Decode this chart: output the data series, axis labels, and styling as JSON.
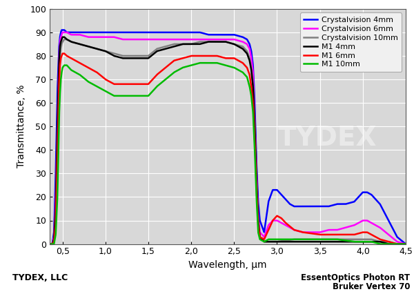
{
  "xlabel": "Wavelength, μm",
  "ylabel": "Transmittance, %",
  "xlim": [
    0.35,
    4.5
  ],
  "ylim": [
    0,
    100
  ],
  "xticks": [
    0.5,
    1.0,
    1.5,
    2.0,
    2.5,
    3.0,
    3.5,
    4.0,
    4.5
  ],
  "yticks": [
    0,
    10,
    20,
    30,
    40,
    50,
    60,
    70,
    80,
    90,
    100
  ],
  "footer_left": "TYDEX, LLC",
  "footer_right_line1": "EssentOptics Photon RT",
  "footer_right_line2": "Bruker Vertex 70",
  "background_color": "#d8d8d8",
  "legend": [
    {
      "label": "Crystalvision 4mm",
      "color": "#0000ff",
      "lw": 1.8
    },
    {
      "label": "Crystalvision 6mm",
      "color": "#ff00ff",
      "lw": 1.8
    },
    {
      "label": "Crystalvision 10mm",
      "color": "#808080",
      "lw": 1.8
    },
    {
      "label": "M1 4mm",
      "color": "#000000",
      "lw": 1.8
    },
    {
      "label": "M1 6mm",
      "color": "#ff0000",
      "lw": 1.8
    },
    {
      "label": "M1 10mm",
      "color": "#00bb00",
      "lw": 1.8
    }
  ],
  "curves": {
    "cv4": {
      "color": "#0000ff",
      "lw": 1.8,
      "x": [
        0.35,
        0.38,
        0.4,
        0.42,
        0.44,
        0.46,
        0.47,
        0.48,
        0.49,
        0.5,
        0.52,
        0.55,
        0.6,
        0.7,
        0.8,
        0.9,
        1.0,
        1.1,
        1.2,
        1.3,
        1.4,
        1.5,
        1.6,
        1.7,
        1.8,
        1.9,
        2.0,
        2.1,
        2.2,
        2.3,
        2.4,
        2.5,
        2.6,
        2.65,
        2.68,
        2.7,
        2.72,
        2.74,
        2.76,
        2.78,
        2.8,
        2.85,
        2.9,
        2.95,
        3.0,
        3.05,
        3.1,
        3.15,
        3.2,
        3.3,
        3.4,
        3.5,
        3.6,
        3.7,
        3.8,
        3.9,
        3.95,
        4.0,
        4.05,
        4.1,
        4.15,
        4.2,
        4.3,
        4.4,
        4.5
      ],
      "y": [
        0,
        0,
        5,
        30,
        65,
        84,
        88,
        90,
        91,
        91,
        91,
        90,
        90,
        90,
        90,
        90,
        90,
        90,
        90,
        90,
        90,
        90,
        90,
        90,
        90,
        90,
        90,
        90,
        89,
        89,
        89,
        89,
        88,
        87,
        85,
        82,
        76,
        60,
        35,
        18,
        10,
        5,
        18,
        23,
        23,
        21,
        19,
        17,
        16,
        16,
        16,
        16,
        16,
        17,
        17,
        18,
        20,
        22,
        22,
        21,
        19,
        17,
        10,
        3,
        0
      ]
    },
    "cv6": {
      "color": "#ff00ff",
      "lw": 1.8,
      "x": [
        0.35,
        0.38,
        0.4,
        0.42,
        0.44,
        0.46,
        0.47,
        0.48,
        0.49,
        0.5,
        0.52,
        0.55,
        0.6,
        0.7,
        0.8,
        0.9,
        1.0,
        1.1,
        1.2,
        1.3,
        1.4,
        1.5,
        1.6,
        1.7,
        1.8,
        1.9,
        2.0,
        2.1,
        2.2,
        2.3,
        2.4,
        2.5,
        2.6,
        2.65,
        2.68,
        2.7,
        2.72,
        2.74,
        2.76,
        2.78,
        2.8,
        2.85,
        2.9,
        2.95,
        3.0,
        3.05,
        3.1,
        3.15,
        3.2,
        3.3,
        3.4,
        3.5,
        3.6,
        3.7,
        3.8,
        3.9,
        4.0,
        4.05,
        4.1,
        4.15,
        4.2,
        4.3,
        4.4,
        4.5
      ],
      "y": [
        0,
        0,
        3,
        20,
        52,
        80,
        86,
        88,
        89,
        90,
        90,
        90,
        89,
        89,
        88,
        88,
        88,
        88,
        87,
        87,
        87,
        87,
        87,
        87,
        87,
        87,
        87,
        87,
        87,
        87,
        87,
        87,
        86,
        85,
        83,
        79,
        73,
        54,
        30,
        12,
        5,
        3,
        8,
        10,
        10,
        9,
        8,
        7,
        6,
        5,
        5,
        5,
        6,
        6,
        7,
        8,
        10,
        10,
        9,
        8,
        7,
        4,
        1,
        0
      ]
    },
    "cv10": {
      "color": "#808080",
      "lw": 1.8,
      "x": [
        0.35,
        0.38,
        0.4,
        0.42,
        0.44,
        0.46,
        0.47,
        0.48,
        0.49,
        0.5,
        0.52,
        0.55,
        0.6,
        0.7,
        0.8,
        0.9,
        1.0,
        1.1,
        1.2,
        1.3,
        1.4,
        1.5,
        1.6,
        1.7,
        1.8,
        1.9,
        2.0,
        2.1,
        2.2,
        2.3,
        2.4,
        2.5,
        2.6,
        2.65,
        2.68,
        2.7,
        2.72,
        2.74,
        2.76,
        2.78,
        2.8,
        2.85,
        2.9,
        3.0,
        3.2,
        3.5,
        3.7,
        3.9,
        4.0,
        4.1,
        4.2,
        4.3,
        4.4,
        4.5
      ],
      "y": [
        0,
        0,
        1,
        10,
        38,
        72,
        80,
        83,
        85,
        86,
        87,
        87,
        86,
        85,
        84,
        83,
        82,
        81,
        80,
        80,
        80,
        80,
        83,
        84,
        85,
        85,
        85,
        86,
        86,
        86,
        86,
        85,
        84,
        82,
        79,
        75,
        68,
        52,
        28,
        10,
        3,
        1,
        1,
        1,
        2,
        2,
        2,
        2,
        2,
        2,
        1,
        1,
        0,
        0
      ]
    },
    "m1_4": {
      "color": "#000000",
      "lw": 1.8,
      "x": [
        0.35,
        0.38,
        0.4,
        0.42,
        0.44,
        0.46,
        0.47,
        0.48,
        0.49,
        0.5,
        0.52,
        0.55,
        0.6,
        0.7,
        0.8,
        0.9,
        1.0,
        1.1,
        1.2,
        1.3,
        1.4,
        1.5,
        1.6,
        1.7,
        1.8,
        1.9,
        2.0,
        2.1,
        2.2,
        2.3,
        2.4,
        2.5,
        2.6,
        2.65,
        2.68,
        2.7,
        2.72,
        2.74,
        2.76,
        2.78,
        2.8,
        2.85,
        2.9,
        3.0,
        3.2,
        3.5,
        3.7,
        3.9,
        4.0,
        4.1,
        4.2,
        4.3,
        4.4,
        4.5
      ],
      "y": [
        0,
        0,
        2,
        15,
        50,
        78,
        84,
        86,
        87,
        88,
        88,
        87,
        86,
        85,
        84,
        83,
        82,
        80,
        79,
        79,
        79,
        79,
        82,
        83,
        84,
        85,
        85,
        85,
        86,
        86,
        86,
        85,
        83,
        81,
        78,
        74,
        67,
        50,
        27,
        10,
        3,
        1,
        1,
        1,
        1,
        1,
        1,
        1,
        1,
        1,
        1,
        0,
        0,
        0
      ]
    },
    "m1_6": {
      "color": "#ff0000",
      "lw": 1.8,
      "x": [
        0.35,
        0.38,
        0.4,
        0.42,
        0.44,
        0.46,
        0.47,
        0.48,
        0.49,
        0.5,
        0.52,
        0.55,
        0.6,
        0.7,
        0.8,
        0.9,
        1.0,
        1.1,
        1.2,
        1.3,
        1.4,
        1.5,
        1.6,
        1.7,
        1.8,
        1.9,
        2.0,
        2.1,
        2.2,
        2.3,
        2.4,
        2.5,
        2.6,
        2.65,
        2.68,
        2.7,
        2.72,
        2.74,
        2.76,
        2.78,
        2.8,
        2.85,
        2.9,
        2.95,
        3.0,
        3.05,
        3.1,
        3.2,
        3.3,
        3.5,
        3.7,
        3.9,
        4.0,
        4.05,
        4.1,
        4.15,
        4.2,
        4.3,
        4.4,
        4.5
      ],
      "y": [
        0,
        0,
        1,
        8,
        35,
        68,
        76,
        79,
        80,
        81,
        81,
        80,
        79,
        77,
        75,
        73,
        70,
        68,
        68,
        68,
        68,
        68,
        72,
        75,
        78,
        79,
        80,
        80,
        80,
        80,
        79,
        79,
        77,
        75,
        72,
        67,
        60,
        44,
        24,
        8,
        3,
        2,
        6,
        10,
        12,
        11,
        9,
        6,
        5,
        4,
        4,
        4,
        5,
        5,
        4,
        3,
        2,
        1,
        0,
        0
      ]
    },
    "m1_10": {
      "color": "#00bb00",
      "lw": 1.8,
      "x": [
        0.35,
        0.38,
        0.4,
        0.42,
        0.44,
        0.46,
        0.47,
        0.48,
        0.49,
        0.5,
        0.52,
        0.55,
        0.6,
        0.7,
        0.8,
        0.9,
        1.0,
        1.1,
        1.2,
        1.3,
        1.4,
        1.5,
        1.6,
        1.7,
        1.8,
        1.9,
        2.0,
        2.1,
        2.2,
        2.3,
        2.4,
        2.5,
        2.6,
        2.65,
        2.68,
        2.7,
        2.72,
        2.74,
        2.76,
        2.78,
        2.8,
        2.85,
        2.9,
        3.0,
        3.2,
        3.3,
        3.5,
        3.7,
        3.9,
        4.0,
        4.1,
        4.2,
        4.3,
        4.4,
        4.5
      ],
      "y": [
        0,
        0,
        0,
        4,
        20,
        54,
        64,
        70,
        73,
        75,
        76,
        76,
        74,
        72,
        69,
        67,
        65,
        63,
        63,
        63,
        63,
        63,
        67,
        70,
        73,
        75,
        76,
        77,
        77,
        77,
        76,
        75,
        73,
        71,
        67,
        63,
        56,
        40,
        20,
        5,
        2,
        1,
        2,
        2,
        2,
        2,
        2,
        2,
        1,
        1,
        1,
        0,
        0,
        0,
        0
      ]
    }
  }
}
